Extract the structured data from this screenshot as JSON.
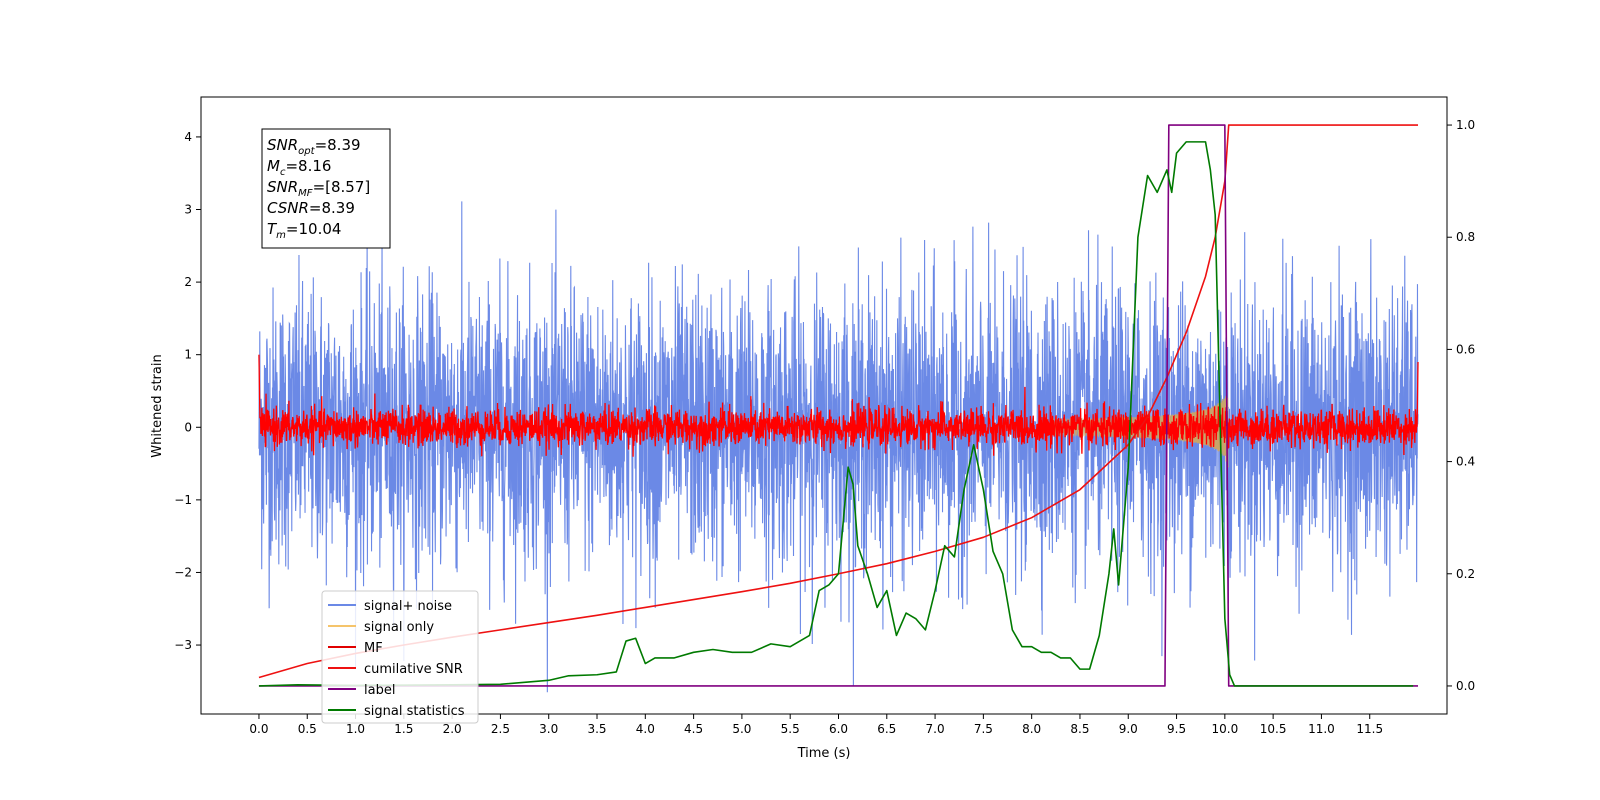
{
  "chart_data": {
    "type": "line",
    "xlabel": "Time (s)",
    "ylabel": "Whitened strain",
    "xlim": [
      -0.6,
      12.3
    ],
    "ylim": [
      -3.95,
      4.55
    ],
    "y2lim": [
      -0.05,
      1.05
    ],
    "xticks": [
      "0.0",
      "0.5",
      "1.0",
      "1.5",
      "2.0",
      "2.5",
      "3.0",
      "3.5",
      "4.0",
      "4.5",
      "5.0",
      "5.5",
      "6.0",
      "6.5",
      "7.0",
      "7.5",
      "8.0",
      "8.5",
      "9.0",
      "9.5",
      "10.0",
      "10.5",
      "11.0",
      "11.5"
    ],
    "yticks": [
      "−3",
      "−2",
      "−1",
      "0",
      "1",
      "2",
      "3",
      "4"
    ],
    "y2ticks": [
      "0.0",
      "0.2",
      "0.4",
      "0.6",
      "0.8",
      "1.0"
    ],
    "info_box": {
      "snr_opt": {
        "sym": "SNR",
        "sub": "opt",
        "val": "=8.39"
      },
      "mc": {
        "sym": "M",
        "sub": "c",
        "val": "=8.16"
      },
      "snr_mf": {
        "sym": "SNR",
        "sub": "MF",
        "val": "=[8.57]"
      },
      "csnr": {
        "sym": "CSNR",
        "sub": "",
        "val": "=8.39"
      },
      "tm": {
        "sym": "T",
        "sub": "m",
        "val": "=10.04"
      }
    },
    "legend": {
      "position": "lower-left",
      "entries": [
        {
          "label": "signal+ noise",
          "color": "#6b89e6"
        },
        {
          "label": "signal only",
          "color": "#f5c46b"
        },
        {
          "label": "MF",
          "color": "#e00000"
        },
        {
          "label": "cumilative SNR",
          "color": "#ee1111"
        },
        {
          "label": "label",
          "color": "#800080"
        },
        {
          "label": "signal statistics",
          "color": "#007a00"
        }
      ]
    },
    "series": [
      {
        "name": "signal+ noise",
        "axis": "left",
        "noise_std": 1.0,
        "x_range": [
          0.0,
          12.0
        ],
        "color": "#6b89e6"
      },
      {
        "name": "signal only",
        "axis": "left",
        "chirp_peak_amp": 0.6,
        "x_range": [
          8.2,
          10.04
        ],
        "color": "#c8a46a"
      },
      {
        "name": "MF",
        "axis": "left",
        "noise_std": 0.13,
        "x_range": [
          0.0,
          12.0
        ],
        "color": "#ff0000"
      },
      {
        "name": "cumilative SNR",
        "axis": "right",
        "color": "#ee1111",
        "x": [
          0.0,
          0.5,
          1.0,
          1.5,
          2.0,
          2.5,
          3.0,
          3.5,
          4.0,
          4.5,
          5.0,
          5.5,
          6.0,
          6.5,
          7.0,
          7.5,
          8.0,
          8.5,
          9.0,
          9.2,
          9.4,
          9.6,
          9.8,
          9.9,
          10.0,
          10.04,
          12.0
        ],
        "y": [
          0.015,
          0.04,
          0.058,
          0.073,
          0.087,
          0.1,
          0.113,
          0.126,
          0.14,
          0.154,
          0.168,
          0.183,
          0.2,
          0.218,
          0.24,
          0.265,
          0.3,
          0.35,
          0.43,
          0.48,
          0.55,
          0.63,
          0.73,
          0.8,
          0.9,
          1.0,
          1.0
        ]
      },
      {
        "name": "label",
        "axis": "right",
        "color": "#800080",
        "x": [
          0.0,
          9.38,
          9.42,
          10.0,
          10.04,
          12.0
        ],
        "y": [
          0.0,
          0.0,
          1.0,
          1.0,
          0.0,
          0.0
        ]
      },
      {
        "name": "signal statistics",
        "axis": "right",
        "color": "#007a00",
        "x": [
          0.0,
          0.4,
          1.0,
          2.0,
          2.5,
          3.0,
          3.2,
          3.5,
          3.7,
          3.8,
          3.9,
          4.0,
          4.1,
          4.3,
          4.5,
          4.7,
          4.9,
          5.1,
          5.3,
          5.5,
          5.7,
          5.8,
          5.9,
          6.0,
          6.1,
          6.15,
          6.2,
          6.3,
          6.4,
          6.5,
          6.6,
          6.7,
          6.8,
          6.9,
          7.0,
          7.1,
          7.2,
          7.3,
          7.4,
          7.5,
          7.6,
          7.7,
          7.8,
          7.9,
          8.0,
          8.1,
          8.2,
          8.3,
          8.4,
          8.5,
          8.55,
          8.6,
          8.7,
          8.8,
          8.85,
          8.9,
          9.0,
          9.1,
          9.2,
          9.3,
          9.4,
          9.45,
          9.5,
          9.6,
          9.7,
          9.8,
          9.85,
          9.9,
          10.0,
          10.05,
          10.1,
          10.5,
          11.0,
          11.5,
          11.95
        ],
        "y": [
          0.0,
          0.002,
          0.001,
          0.002,
          0.003,
          0.01,
          0.018,
          0.02,
          0.025,
          0.08,
          0.085,
          0.04,
          0.05,
          0.05,
          0.06,
          0.065,
          0.06,
          0.06,
          0.075,
          0.07,
          0.09,
          0.17,
          0.18,
          0.2,
          0.39,
          0.36,
          0.25,
          0.2,
          0.14,
          0.17,
          0.09,
          0.13,
          0.12,
          0.1,
          0.17,
          0.25,
          0.23,
          0.35,
          0.43,
          0.35,
          0.24,
          0.2,
          0.1,
          0.07,
          0.07,
          0.06,
          0.06,
          0.05,
          0.05,
          0.03,
          0.03,
          0.03,
          0.09,
          0.2,
          0.28,
          0.18,
          0.39,
          0.8,
          0.91,
          0.88,
          0.92,
          0.88,
          0.95,
          0.97,
          0.97,
          0.97,
          0.92,
          0.84,
          0.12,
          0.02,
          0.0,
          0.0,
          0.0,
          0.0,
          0.0
        ]
      }
    ]
  }
}
